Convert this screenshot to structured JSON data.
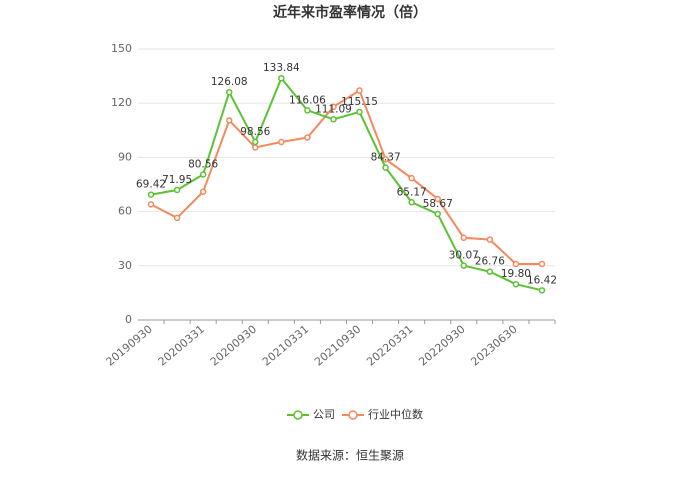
{
  "chart_data": {
    "type": "line",
    "title": "近年来市盈率情况（倍）",
    "source": "数据来源：恒生聚源",
    "categories": [
      "20190930",
      null,
      "20200331",
      null,
      "20200930",
      null,
      "20210331",
      null,
      "20210930",
      null,
      "20220331",
      null,
      "20220930",
      null,
      "20230630",
      null
    ],
    "series": [
      {
        "name": "公司",
        "color": "#5cc234",
        "values": [
          69.42,
          71.95,
          80.56,
          126.08,
          98.56,
          133.84,
          116.06,
          111.09,
          115.15,
          84.37,
          65.17,
          58.67,
          30.07,
          26.76,
          19.8,
          16.42
        ],
        "value_labels": [
          "69.42",
          "71.95",
          "80.56",
          "126.08",
          "98.56",
          "133.84",
          "116.06",
          "111.09",
          "115.15",
          "84.37",
          "65.17",
          "58.67",
          "30.07",
          "26.76",
          "19.80",
          "16.42"
        ]
      },
      {
        "name": "行业中位数",
        "color": "#f4895f",
        "values": [
          64,
          56.5,
          71,
          110.5,
          95.5,
          98.5,
          101,
          118,
          127,
          89,
          78.5,
          67,
          45.5,
          44.5,
          31,
          31
        ]
      }
    ],
    "ylim": [
      0,
      150
    ],
    "yticks": [
      0,
      30,
      60,
      90,
      120,
      150
    ],
    "grid": true
  }
}
